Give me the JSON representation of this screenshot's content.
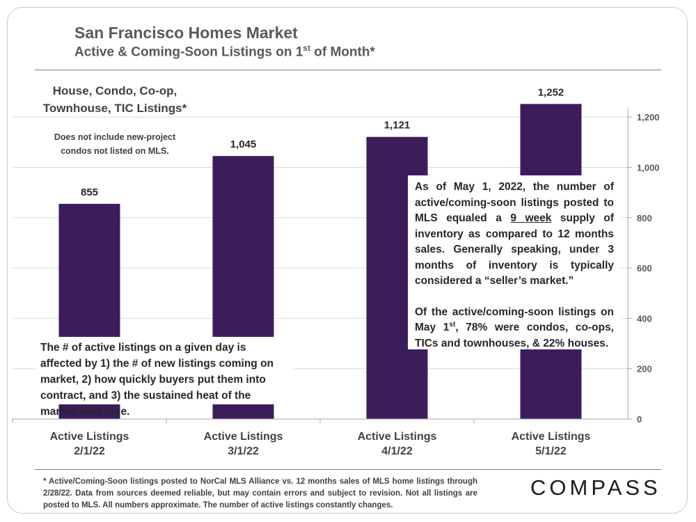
{
  "title": "San Francisco Homes Market",
  "subtitle": {
    "text_before": "Active & Coming-Soon Listings on 1",
    "superscript": "st",
    "text_after": " of Month*"
  },
  "left_panel": {
    "heading_line1": "House, Condo, Co-op,",
    "heading_line2": "Townhouse, TIC Listings*",
    "note_line1": "Does not include new-project",
    "note_line2": "condos not listed on MLS."
  },
  "chart_data": {
    "type": "bar",
    "categories": [
      {
        "line1": "Active Listings",
        "line2": "2/1/22"
      },
      {
        "line1": "Active Listings",
        "line2": "3/1/22"
      },
      {
        "line1": "Active Listings",
        "line2": "4/1/22"
      },
      {
        "line1": "Active Listings",
        "line2": "5/1/22"
      }
    ],
    "values": [
      855,
      1045,
      1121,
      1252
    ],
    "value_labels": [
      "855",
      "1,045",
      "1,121",
      "1,252"
    ],
    "ylim": [
      0,
      1300
    ],
    "yticks": [
      0,
      200,
      400,
      600,
      800,
      1000,
      1200
    ],
    "ytick_labels": [
      "0",
      "200",
      "400",
      "600",
      "800",
      "1,000",
      "1,200"
    ],
    "y_axis_side": "right",
    "grid": true,
    "bar_color": "#3d1c5c"
  },
  "annotation_left": "The # of active listings on a given day is affected by 1) the # of new listings coming on market, 2) how quickly buyers put them into contract, and 3) the sustained heat of the market over time.",
  "annotation_right": {
    "p1_before": "As of May 1, 2022, the number of active/coming-soon listings posted to MLS equaled a ",
    "p1_underlined": "9 week",
    "p1_after": " supply of inventory  as compared to 12 months sales. Generally speaking, under 3 months of inventory is typically considered a “seller’s market.”",
    "p2_before": "Of the active/coming-soon listings on May 1",
    "p2_superscript": "st",
    "p2_after": ", 78% were condos, co-ops, TICs and townhouses, & 22% houses."
  },
  "footnote": "* Active/Coming-Soon listings posted to NorCal MLS Alliance vs. 12 months sales of MLS home listings through 2/28/22. Data from sources deemed reliable, but may contain errors and subject to revision. Not all listings are posted to MLS. All numbers approximate. The number of active listings constantly changes.",
  "logo": "COMPASS"
}
